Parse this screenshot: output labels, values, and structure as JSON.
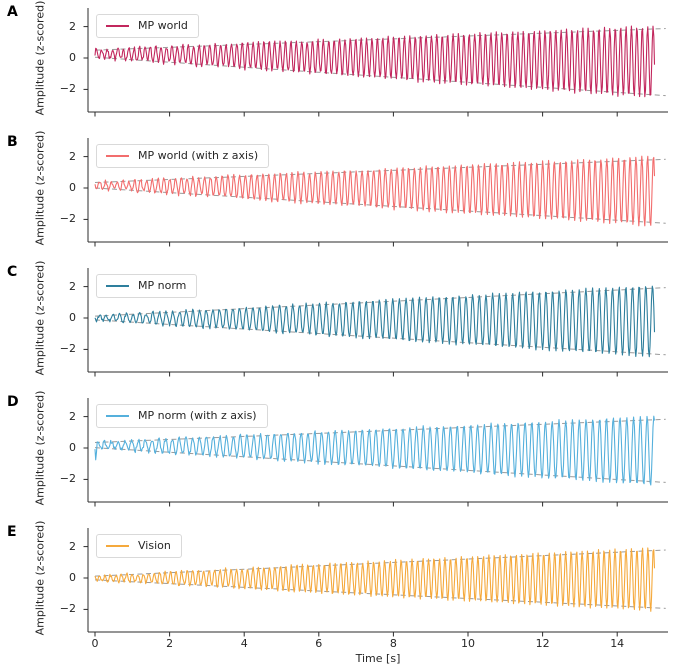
{
  "figure": {
    "background": "#ffffff",
    "spine_color": "#2b2b2b",
    "tick_label_color": "#262626",
    "envelope_color": "#9a9a9a"
  },
  "chart_data": {
    "type": "line",
    "description": "Five stacked subplots (A-E) of oscillatory signals with linearly growing amplitude over time, each with gray dashed linear envelope guide lines.",
    "x_axis": {
      "label": "Time [s]",
      "range": [
        -0.19,
        15.36
      ],
      "ticks": [
        0,
        2,
        4,
        6,
        8,
        10,
        12,
        14
      ],
      "tick_labels": [
        "0",
        "2",
        "4",
        "6",
        "8",
        "10",
        "12",
        "14"
      ]
    },
    "y_axis": {
      "label": "Amplitude (z-scored)",
      "range": [
        -3.4,
        3.3
      ],
      "ticks": [
        2,
        0,
        -2
      ],
      "tick_labels": [
        "2",
        "0",
        "−2"
      ]
    },
    "duration_s": 15,
    "panels": [
      {
        "letter": "A",
        "label": "MP world",
        "color": "#c2275d",
        "freq_hz": 6.9,
        "seed": 7,
        "noise": 0.13,
        "overshoot": 1.1,
        "envelope_upper_start_end": [
          0.5,
          1.85
        ],
        "envelope_lower_start_end": [
          0.05,
          -2.35
        ]
      },
      {
        "letter": "B",
        "label": "MP world (with z axis)",
        "color": "#f26d6d",
        "freq_hz": 6.4,
        "seed": 21,
        "noise": 0.12,
        "overshoot": 1.12,
        "envelope_upper_start_end": [
          0.35,
          1.8
        ],
        "envelope_lower_start_end": [
          0.0,
          -2.2
        ]
      },
      {
        "letter": "C",
        "label": "MP norm",
        "color": "#2e7f9d",
        "freq_hz": 5.6,
        "seed": 33,
        "noise": 0.1,
        "overshoot": 1.1,
        "envelope_upper_start_end": [
          0.12,
          1.9
        ],
        "envelope_lower_start_end": [
          -0.12,
          -2.3
        ]
      },
      {
        "letter": "D",
        "label": "MP norm (with z axis)",
        "color": "#55b0dc",
        "freq_hz": 5.5,
        "seed": 44,
        "noise": 0.12,
        "overshoot": 1.12,
        "start_spike": -0.75,
        "envelope_upper_start_end": [
          0.35,
          1.8
        ],
        "envelope_lower_start_end": [
          0.02,
          -2.15
        ]
      },
      {
        "letter": "E",
        "label": "Vision",
        "color": "#f5a93c",
        "freq_hz": 6.8,
        "seed": 55,
        "noise": 0.1,
        "overshoot": 1.12,
        "envelope_upper_start_end": [
          0.12,
          1.75
        ],
        "envelope_lower_start_end": [
          -0.12,
          -1.9
        ]
      }
    ]
  }
}
